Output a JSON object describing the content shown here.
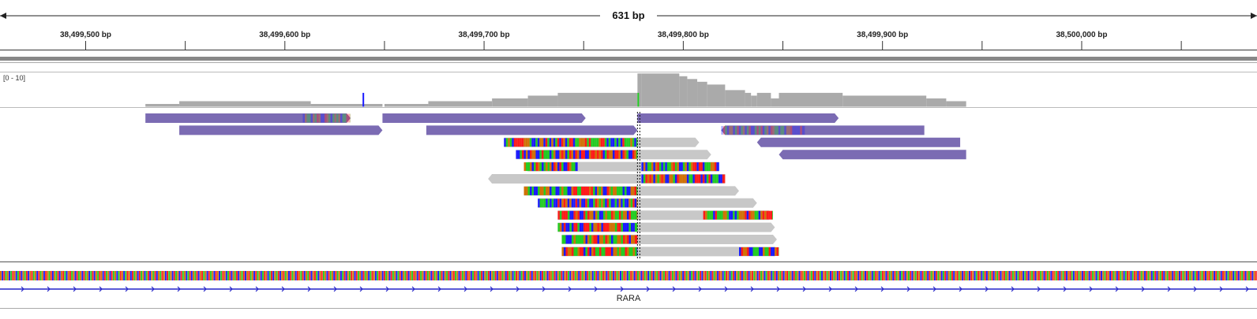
{
  "ruler": {
    "span_label": "631 bp",
    "region_start_bp": 38499457,
    "region_end_bp": 38500088,
    "ticks": [
      {
        "bp": 38499500,
        "label": "38,499,500 bp"
      },
      {
        "bp": 38499600,
        "label": "38,499,600 bp"
      },
      {
        "bp": 38499700,
        "label": "38,499,700 bp"
      },
      {
        "bp": 38499800,
        "label": "38,499,800 bp"
      },
      {
        "bp": 38499900,
        "label": "38,499,900 bp"
      },
      {
        "bp": 38500000,
        "label": "38,500,000 bp"
      }
    ],
    "minor_tick_bps": [
      38499550,
      38499650,
      38499750,
      38499850,
      38499950,
      38500050
    ]
  },
  "coverage": {
    "range_label": "[0 - 10]",
    "min": 0,
    "max": 10,
    "segments": [
      {
        "start": 38499530,
        "end": 38499547,
        "depth": 0.8
      },
      {
        "start": 38499547,
        "end": 38499613,
        "depth": 1.6
      },
      {
        "start": 38499613,
        "end": 38499649,
        "depth": 0.8
      },
      {
        "start": 38499650,
        "end": 38499672,
        "depth": 0.8
      },
      {
        "start": 38499672,
        "end": 38499704,
        "depth": 1.6
      },
      {
        "start": 38499704,
        "end": 38499722,
        "depth": 2.4
      },
      {
        "start": 38499722,
        "end": 38499737,
        "depth": 3.2
      },
      {
        "start": 38499737,
        "end": 38499777,
        "depth": 4.0
      },
      {
        "start": 38499777,
        "end": 38499779,
        "depth": 9.6
      },
      {
        "start": 38499779,
        "end": 38499798,
        "depth": 9.6
      },
      {
        "start": 38499798,
        "end": 38499802,
        "depth": 8.8
      },
      {
        "start": 38499802,
        "end": 38499807,
        "depth": 8.0
      },
      {
        "start": 38499807,
        "end": 38499812,
        "depth": 7.2
      },
      {
        "start": 38499812,
        "end": 38499821,
        "depth": 6.4
      },
      {
        "start": 38499821,
        "end": 38499831,
        "depth": 4.8
      },
      {
        "start": 38499831,
        "end": 38499834,
        "depth": 4.0
      },
      {
        "start": 38499834,
        "end": 38499837,
        "depth": 3.2
      },
      {
        "start": 38499837,
        "end": 38499844,
        "depth": 4.0
      },
      {
        "start": 38499844,
        "end": 38499848,
        "depth": 2.4
      },
      {
        "start": 38499848,
        "end": 38499880,
        "depth": 4.0
      },
      {
        "start": 38499880,
        "end": 38499922,
        "depth": 3.2
      },
      {
        "start": 38499922,
        "end": 38499932,
        "depth": 2.4
      },
      {
        "start": 38499932,
        "end": 38499942,
        "depth": 1.6
      }
    ],
    "mismatch_markers": [
      {
        "bp": 38499639,
        "color": "#1a1aff"
      },
      {
        "bp": 38499777,
        "color": "#22cc22"
      }
    ]
  },
  "alignments": {
    "reads": [
      {
        "start": 38499530,
        "end": 38499633,
        "strand": "+",
        "color": "#7b6bb3",
        "row": 0,
        "soft_clips": [
          {
            "start": 38499609,
            "end": 38499633
          }
        ]
      },
      {
        "start": 38499649,
        "end": 38499751,
        "strand": "+",
        "color": "#7b6bb3",
        "row": 0,
        "soft_clips": []
      },
      {
        "start": 38499777,
        "end": 38499878,
        "strand": "+",
        "color": "#7b6bb3",
        "row": 0,
        "soft_clips": []
      },
      {
        "start": 38499547,
        "end": 38499649,
        "strand": "+",
        "color": "#7b6bb3",
        "row": 1,
        "soft_clips": []
      },
      {
        "start": 38499671,
        "end": 38499777,
        "strand": "+",
        "color": "#7b6bb3",
        "row": 1,
        "soft_clips": []
      },
      {
        "start": 38499819,
        "end": 38499921,
        "strand": "-",
        "color": "#7b6bb3",
        "row": 1,
        "soft_clips": [
          {
            "start": 38499819,
            "end": 38499861
          }
        ]
      },
      {
        "start": 38499710,
        "end": 38499808,
        "strand": "+",
        "color": "#c8c8c8",
        "row": 2,
        "soft_clips": [
          {
            "start": 38499710,
            "end": 38499777
          }
        ]
      },
      {
        "start": 38499837,
        "end": 38499939,
        "strand": "-",
        "color": "#7b6bb3",
        "row": 2,
        "soft_clips": []
      },
      {
        "start": 38499716,
        "end": 38499814,
        "strand": "+",
        "color": "#c8c8c8",
        "row": 3,
        "soft_clips": [
          {
            "start": 38499716,
            "end": 38499777
          }
        ]
      },
      {
        "start": 38499848,
        "end": 38499942,
        "strand": "-",
        "color": "#7b6bb3",
        "row": 3,
        "soft_clips": []
      },
      {
        "start": 38499720,
        "end": 38499818,
        "strand": "-",
        "color": "#c8c8c8",
        "row": 4,
        "soft_clips": [
          {
            "start": 38499720,
            "end": 38499747
          },
          {
            "start": 38499779,
            "end": 38499818
          }
        ]
      },
      {
        "start": 38499702,
        "end": 38499821,
        "strand": "-",
        "color": "#c8c8c8",
        "row": 5,
        "soft_clips": [
          {
            "start": 38499779,
            "end": 38499821
          }
        ]
      },
      {
        "start": 38499720,
        "end": 38499828,
        "strand": "+",
        "color": "#c8c8c8",
        "row": 6,
        "soft_clips": [
          {
            "start": 38499720,
            "end": 38499777
          }
        ]
      },
      {
        "start": 38499727,
        "end": 38499837,
        "strand": "+",
        "color": "#c8c8c8",
        "row": 7,
        "soft_clips": [
          {
            "start": 38499727,
            "end": 38499777
          }
        ]
      },
      {
        "start": 38499737,
        "end": 38499845,
        "strand": "+",
        "color": "#c8c8c8",
        "row": 8,
        "soft_clips": [
          {
            "start": 38499737,
            "end": 38499777
          },
          {
            "start": 38499810,
            "end": 38499845
          }
        ]
      },
      {
        "start": 38499737,
        "end": 38499846,
        "strand": "+",
        "color": "#c8c8c8",
        "row": 9,
        "soft_clips": [
          {
            "start": 38499737,
            "end": 38499777
          }
        ]
      },
      {
        "start": 38499739,
        "end": 38499847,
        "strand": "+",
        "color": "#c8c8c8",
        "row": 10,
        "soft_clips": [
          {
            "start": 38499739,
            "end": 38499777
          }
        ]
      },
      {
        "start": 38499739,
        "end": 38499848,
        "strand": "+",
        "color": "#c8c8c8",
        "row": 11,
        "soft_clips": [
          {
            "start": 38499739,
            "end": 38499777
          },
          {
            "start": 38499828,
            "end": 38499848
          }
        ]
      }
    ],
    "base_colors": {
      "A": "#22cc22",
      "C": "#1a1aff",
      "G": "#d17105",
      "T": "#ff1a1a"
    }
  },
  "sequence": {
    "bases": "GCTAGCATGCATCGATCGTAGCTAGCTGATCGATCGTACGTAGCTAGCTAGCATCGATGCTAGCTAGCATGCATGCTAGCTAGCATCGATCGATGCTAGCTAGCTAGCATCGATCGTAGCTAGCTGCATGCATCGATCGATCGTAGCTAGCATGCATCGATCGTAGCTAGCTGATCGATCGTACGTAGCTAGCTAGCATCGATGCTAGCTAGCATGCATGCTAGCTAGCATCGATCGATGCTAGCTAGCTAGCATCGATCGTAGCTAGCTGCATGCATCGATCGATCGTAGCTAGCATGCATCGATCGTAGCTAGCTGATCGATCGTACGTAGCTAGCTAGCATCGATGCTAGCTAGCATGCATGCTAGCTAGCATCGATCGATGCTAGCTAGCTAGCATCGATCGTAGCTAGCTGCATGCATCGATCGATCGTAGCTAGCATGCATCGATCGTAGCTAGCTGATCGATCGTACGTAGCTAGCTAGCATCGATGCTAGCTAGCATGCATGCTAGCTAGCATCGATCGATGCTAGCTAGCTAGCATCGATCGTAGCTAGCTGCATGCATCGATCGATCGTAGCTAGCATGCATCGATCGTAGCTAGCTGATCGATCGTACGTAGCTAGCTAGCATCGATGCTAGCTAGCATGCATGCTAGCTAGCATCGATCGATGCTAGCTAGCTAGCATCGATCGTAGCTAGCTGCATGCATCGATCGATCGT"
  },
  "gene": {
    "name": "RARA",
    "strand": "+",
    "color": "#2424c8"
  }
}
